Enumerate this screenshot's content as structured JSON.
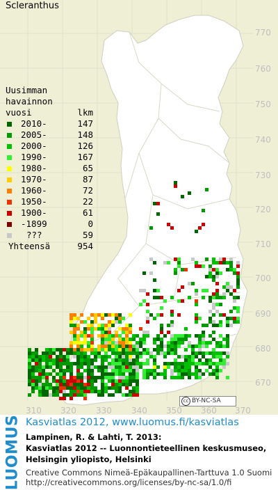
{
  "map": {
    "title": "Scleranthus",
    "legend": {
      "heading_lines": [
        "Uusimman",
        "havainnon",
        "vuosi"
      ],
      "count_heading": "lkm",
      "entries": [
        {
          "label": "2010-",
          "count": "147",
          "color": "#006600"
        },
        {
          "label": "2005-",
          "count": "148",
          "color": "#009900"
        },
        {
          "label": "2000-",
          "count": "126",
          "color": "#00c000"
        },
        {
          "label": "1990-",
          "count": "167",
          "color": "#33ee33"
        },
        {
          "label": "1980-",
          "count": "65",
          "color": "#ffff00"
        },
        {
          "label": "1970-",
          "count": "87",
          "color": "#ffcc00"
        },
        {
          "label": "1960-",
          "count": "72",
          "color": "#ff8000"
        },
        {
          "label": "1950-",
          "count": "22",
          "color": "#ee3300"
        },
        {
          "label": "1900-",
          "count": "61",
          "color": "#cc0000"
        },
        {
          "label": "-1899",
          "count": "0",
          "color": "#800000"
        },
        {
          "label": "???",
          "count": "59",
          "color": "#c8c8c8"
        }
      ],
      "total_label": "Yhteensä",
      "total_count": "954"
    },
    "y_ticks": [
      "770",
      "760",
      "750",
      "740",
      "730",
      "720",
      "710",
      "700",
      "690",
      "680",
      "670"
    ],
    "x_ticks": [
      "310",
      "320",
      "330",
      "340",
      "350",
      "360",
      "370"
    ],
    "license_badge": "BY-NC-SA"
  },
  "footer": {
    "logo_text": "LUOMUS",
    "atlas_link": "Kasviatlas 2012, www.luomus.fi/kasviatlas",
    "citation_lines": [
      "Lampinen, R. & Lahti, T. 2013:",
      "Kasviatlas 2012 -- Luonnontieteellinen keskusmuseo,",
      "Helsingin yliopisto, Helsinki"
    ],
    "license_lines": [
      "Creative Commons Nimeä-Epäkaupallinen-Tarttuva 1.0 Suomi",
      "http://creativecommons.org/licenses/by-nc-sa/1.0/fi"
    ]
  }
}
